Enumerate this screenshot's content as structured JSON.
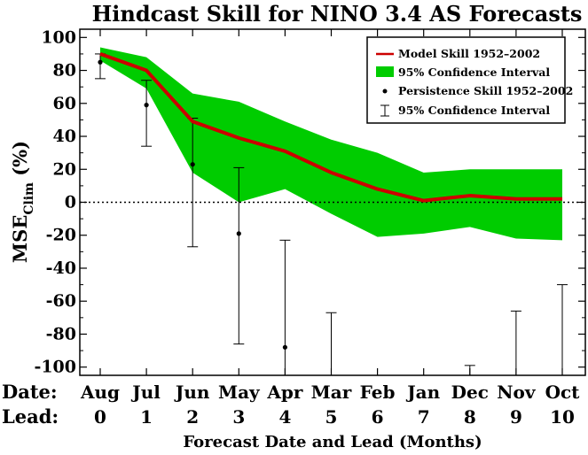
{
  "chart_data": {
    "type": "line",
    "title": "Hindcast Skill for NINO 3.4 AS Forecasts",
    "ylabel_main": "MSE",
    "ylabel_sub": "Clim",
    "ylabel_unit": "(%)",
    "xlabel": "Forecast Date and Lead (Months)",
    "row_labels": {
      "date": "Date:",
      "lead": "Lead:"
    },
    "dates": [
      "Aug",
      "Jul",
      "Jun",
      "May",
      "Apr",
      "Mar",
      "Feb",
      "Jan",
      "Dec",
      "Nov",
      "Oct"
    ],
    "leads": [
      "0",
      "1",
      "2",
      "3",
      "4",
      "5",
      "6",
      "7",
      "8",
      "9",
      "10"
    ],
    "ylim": [
      -105,
      105
    ],
    "yticks": [
      100,
      80,
      60,
      40,
      20,
      0,
      -20,
      -40,
      -60,
      -80,
      -100
    ],
    "zero_line": 0,
    "model_skill": {
      "name": "Model Skill 1952–2002",
      "color": "#cc0000",
      "values": [
        90,
        80,
        49,
        39,
        31,
        18,
        8,
        1,
        4,
        2,
        2
      ]
    },
    "model_ci": {
      "name": "95% Confidence Interval",
      "color": "#00cc00",
      "upper": [
        94,
        88,
        66,
        61,
        49,
        38,
        30,
        18,
        20,
        20,
        20
      ],
      "lower": [
        86,
        69,
        18,
        0,
        8,
        -7,
        -21,
        -19,
        -15,
        -22,
        -23
      ]
    },
    "persistence_skill": {
      "name": "Persistence Skill 1952–2002",
      "values": [
        85,
        59,
        23,
        -19,
        -88,
        null,
        null,
        null,
        null,
        null,
        null
      ]
    },
    "persistence_ci": {
      "name": "95% Confidence Interval",
      "upper": [
        90,
        74,
        51,
        21,
        -23,
        -67,
        null,
        null,
        -99,
        -66,
        -50
      ],
      "lower": [
        75,
        34,
        -27,
        -86,
        -105,
        -105,
        null,
        null,
        -105,
        -105,
        -105
      ]
    }
  }
}
